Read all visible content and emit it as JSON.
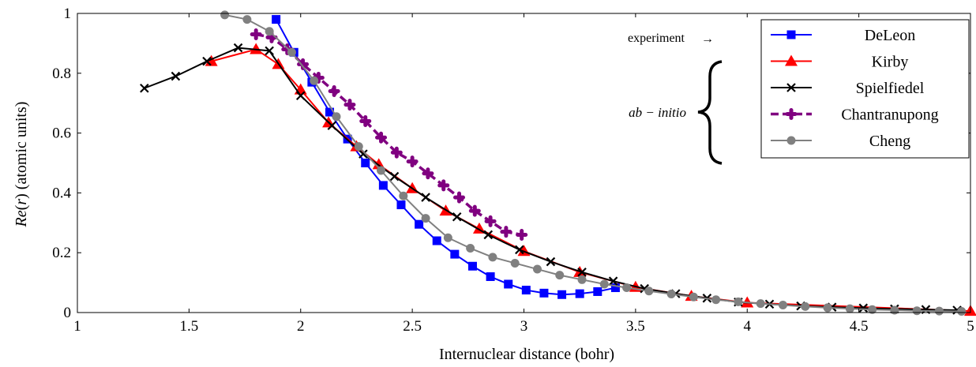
{
  "chart_data": {
    "type": "line",
    "title": "",
    "xlabel": "Internuclear distance (bohr)",
    "ylabel_parts": [
      "Re",
      "(",
      "r",
      ")",
      " (atomic units)"
    ],
    "xlim": [
      1,
      5
    ],
    "ylim": [
      0,
      1
    ],
    "x_ticks": [
      1,
      1.5,
      2,
      2.5,
      3,
      3.5,
      4,
      4.5,
      5
    ],
    "x_tick_labels": [
      "1",
      "1.5",
      "2",
      "2.5",
      "3",
      "3.5",
      "4",
      "4.5",
      "5"
    ],
    "y_ticks": [
      0,
      0.2,
      0.4,
      0.6,
      0.8,
      1
    ],
    "y_tick_labels": [
      "0",
      "0.2",
      "0.4",
      "0.6",
      "0.8",
      "1"
    ],
    "legend_position": "top-right",
    "annotations": {
      "experiment": "experiment",
      "experiment_arrow": "→",
      "ab_initio": "ab − initio"
    },
    "series": [
      {
        "name": "DeLeon",
        "color": "#0000ff",
        "marker": "square",
        "dashed": false,
        "x": [
          1.89,
          1.97,
          2.05,
          2.13,
          2.21,
          2.29,
          2.37,
          2.45,
          2.53,
          2.61,
          2.69,
          2.77,
          2.85,
          2.93,
          3.01,
          3.09,
          3.17,
          3.25,
          3.33,
          3.41
        ],
        "y": [
          0.98,
          0.87,
          0.77,
          0.67,
          0.58,
          0.5,
          0.425,
          0.36,
          0.295,
          0.24,
          0.195,
          0.155,
          0.12,
          0.095,
          0.075,
          0.065,
          0.06,
          0.063,
          0.07,
          0.083
        ]
      },
      {
        "name": "Kirby",
        "color": "#ff0000",
        "marker": "triangle",
        "dashed": false,
        "x": [
          1.6,
          1.8,
          1.9,
          2.0,
          2.125,
          2.25,
          2.35,
          2.5,
          2.65,
          2.8,
          3.0,
          3.25,
          3.5,
          3.75,
          4.0,
          5.0
        ],
        "y": [
          0.84,
          0.88,
          0.83,
          0.745,
          0.635,
          0.555,
          0.495,
          0.415,
          0.34,
          0.28,
          0.205,
          0.135,
          0.085,
          0.055,
          0.033,
          0.005
        ]
      },
      {
        "name": "Spielfiedel",
        "color": "#000000",
        "marker": "cross",
        "dashed": false,
        "x": [
          1.3,
          1.44,
          1.58,
          1.72,
          1.86,
          2.0,
          2.14,
          2.28,
          2.42,
          2.56,
          2.7,
          2.84,
          2.98,
          3.12,
          3.26,
          3.4,
          3.54,
          3.68,
          3.82,
          3.96,
          4.1,
          4.24,
          4.38,
          4.52,
          4.66,
          4.8,
          4.94
        ],
        "y": [
          0.75,
          0.79,
          0.84,
          0.885,
          0.875,
          0.725,
          0.625,
          0.53,
          0.455,
          0.385,
          0.32,
          0.26,
          0.21,
          0.17,
          0.135,
          0.105,
          0.08,
          0.063,
          0.048,
          0.035,
          0.028,
          0.022,
          0.018,
          0.015,
          0.012,
          0.01,
          0.008
        ]
      },
      {
        "name": "Chantranupong",
        "color": "#800080",
        "marker": "plus-dot",
        "dashed": true,
        "x": [
          1.8,
          1.87,
          1.94,
          2.01,
          2.08,
          2.15,
          2.22,
          2.29,
          2.36,
          2.43,
          2.5,
          2.57,
          2.64,
          2.71,
          2.78,
          2.85,
          2.92,
          2.99
        ],
        "y": [
          0.93,
          0.92,
          0.88,
          0.83,
          0.785,
          0.74,
          0.695,
          0.64,
          0.585,
          0.535,
          0.505,
          0.465,
          0.425,
          0.385,
          0.34,
          0.305,
          0.27,
          0.26
        ]
      },
      {
        "name": "Cheng",
        "color": "#808080",
        "marker": "circle",
        "dashed": false,
        "x": [
          1.66,
          1.76,
          1.86,
          1.96,
          2.06,
          2.16,
          2.26,
          2.36,
          2.46,
          2.56,
          2.66,
          2.76,
          2.86,
          2.96,
          3.06,
          3.16,
          3.26,
          3.36,
          3.46,
          3.56,
          3.66,
          3.76,
          3.86,
          3.96,
          4.06,
          4.16,
          4.26,
          4.36,
          4.46,
          4.56,
          4.66,
          4.76,
          4.86,
          4.96
        ],
        "y": [
          0.995,
          0.98,
          0.94,
          0.87,
          0.775,
          0.655,
          0.555,
          0.475,
          0.39,
          0.315,
          0.25,
          0.215,
          0.185,
          0.165,
          0.145,
          0.125,
          0.11,
          0.095,
          0.083,
          0.072,
          0.062,
          0.052,
          0.043,
          0.036,
          0.03,
          0.025,
          0.02,
          0.016,
          0.013,
          0.01,
          0.008,
          0.006,
          0.005,
          0.004
        ]
      }
    ]
  }
}
